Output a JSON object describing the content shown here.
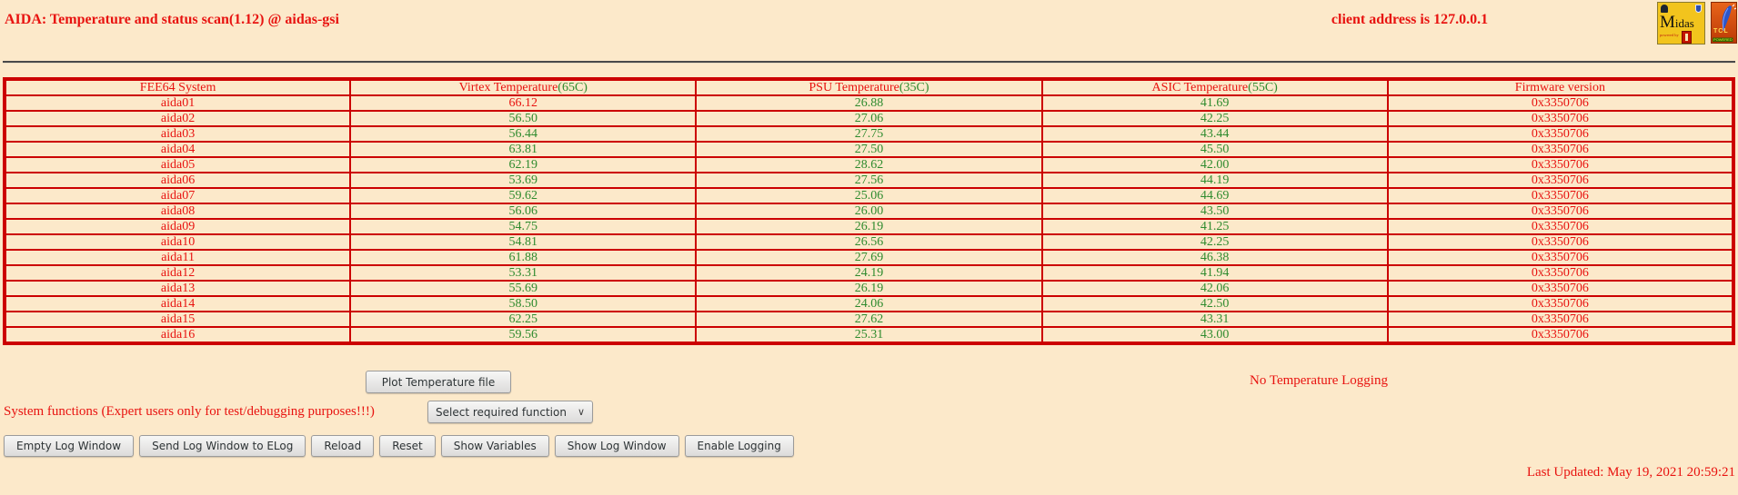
{
  "header": {
    "title": "AIDA: Temperature and status scan(1.12) @ aidas-gsi",
    "client_address": "client address is 127.0.0.1",
    "midas_logo": {
      "name_big": "M",
      "name_rest": "idas",
      "powered_by": "powered by"
    },
    "tcl_logo": {
      "line1": "TCL",
      "line2": "POWERED"
    }
  },
  "table": {
    "columns": [
      {
        "label": "FEE64 System",
        "limit": ""
      },
      {
        "label": "Virtex Temperature",
        "limit": "(65C)"
      },
      {
        "label": "PSU Temperature",
        "limit": "(35C)"
      },
      {
        "label": "ASIC Temperature",
        "limit": "(55C)"
      },
      {
        "label": "Firmware version",
        "limit": ""
      }
    ],
    "rows": [
      {
        "system": "aida01",
        "virtex": "66.12",
        "psu": "26.88",
        "asic": "41.69",
        "firmware": "0x3350706",
        "virtex_alarm": true
      },
      {
        "system": "aida02",
        "virtex": "56.50",
        "psu": "27.06",
        "asic": "42.25",
        "firmware": "0x3350706",
        "virtex_alarm": false
      },
      {
        "system": "aida03",
        "virtex": "56.44",
        "psu": "27.75",
        "asic": "43.44",
        "firmware": "0x3350706",
        "virtex_alarm": false
      },
      {
        "system": "aida04",
        "virtex": "63.81",
        "psu": "27.50",
        "asic": "45.50",
        "firmware": "0x3350706",
        "virtex_alarm": false
      },
      {
        "system": "aida05",
        "virtex": "62.19",
        "psu": "28.62",
        "asic": "42.00",
        "firmware": "0x3350706",
        "virtex_alarm": false
      },
      {
        "system": "aida06",
        "virtex": "53.69",
        "psu": "27.56",
        "asic": "44.19",
        "firmware": "0x3350706",
        "virtex_alarm": false
      },
      {
        "system": "aida07",
        "virtex": "59.62",
        "psu": "25.06",
        "asic": "44.69",
        "firmware": "0x3350706",
        "virtex_alarm": false
      },
      {
        "system": "aida08",
        "virtex": "56.06",
        "psu": "26.00",
        "asic": "43.50",
        "firmware": "0x3350706",
        "virtex_alarm": false
      },
      {
        "system": "aida09",
        "virtex": "54.75",
        "psu": "26.19",
        "asic": "41.25",
        "firmware": "0x3350706",
        "virtex_alarm": false
      },
      {
        "system": "aida10",
        "virtex": "54.81",
        "psu": "26.56",
        "asic": "42.25",
        "firmware": "0x3350706",
        "virtex_alarm": false
      },
      {
        "system": "aida11",
        "virtex": "61.88",
        "psu": "27.69",
        "asic": "46.38",
        "firmware": "0x3350706",
        "virtex_alarm": false
      },
      {
        "system": "aida12",
        "virtex": "53.31",
        "psu": "24.19",
        "asic": "41.94",
        "firmware": "0x3350706",
        "virtex_alarm": false
      },
      {
        "system": "aida13",
        "virtex": "55.69",
        "psu": "26.19",
        "asic": "42.06",
        "firmware": "0x3350706",
        "virtex_alarm": false
      },
      {
        "system": "aida14",
        "virtex": "58.50",
        "psu": "24.06",
        "asic": "42.50",
        "firmware": "0x3350706",
        "virtex_alarm": false
      },
      {
        "system": "aida15",
        "virtex": "62.25",
        "psu": "27.62",
        "asic": "43.31",
        "firmware": "0x3350706",
        "virtex_alarm": false
      },
      {
        "system": "aida16",
        "virtex": "59.56",
        "psu": "25.31",
        "asic": "43.00",
        "firmware": "0x3350706",
        "virtex_alarm": false
      }
    ]
  },
  "actions": {
    "plot_button": "Plot Temperature file",
    "logging_status": "No Temperature Logging",
    "system_functions_label": "System functions (Expert users only for test/debugging purposes!!!)",
    "function_select_value": "Select required function",
    "buttons": [
      "Empty Log Window",
      "Send Log Window to ELog",
      "Reload",
      "Reset",
      "Show Variables",
      "Show Log Window",
      "Enable Logging"
    ]
  },
  "footer": {
    "last_updated": "Last Updated: May 19, 2021 20:59:21"
  },
  "colors": {
    "red": "#e81310",
    "green": "#2e8b2e",
    "table_border": "#cc0000",
    "background": "#fce9ca"
  }
}
